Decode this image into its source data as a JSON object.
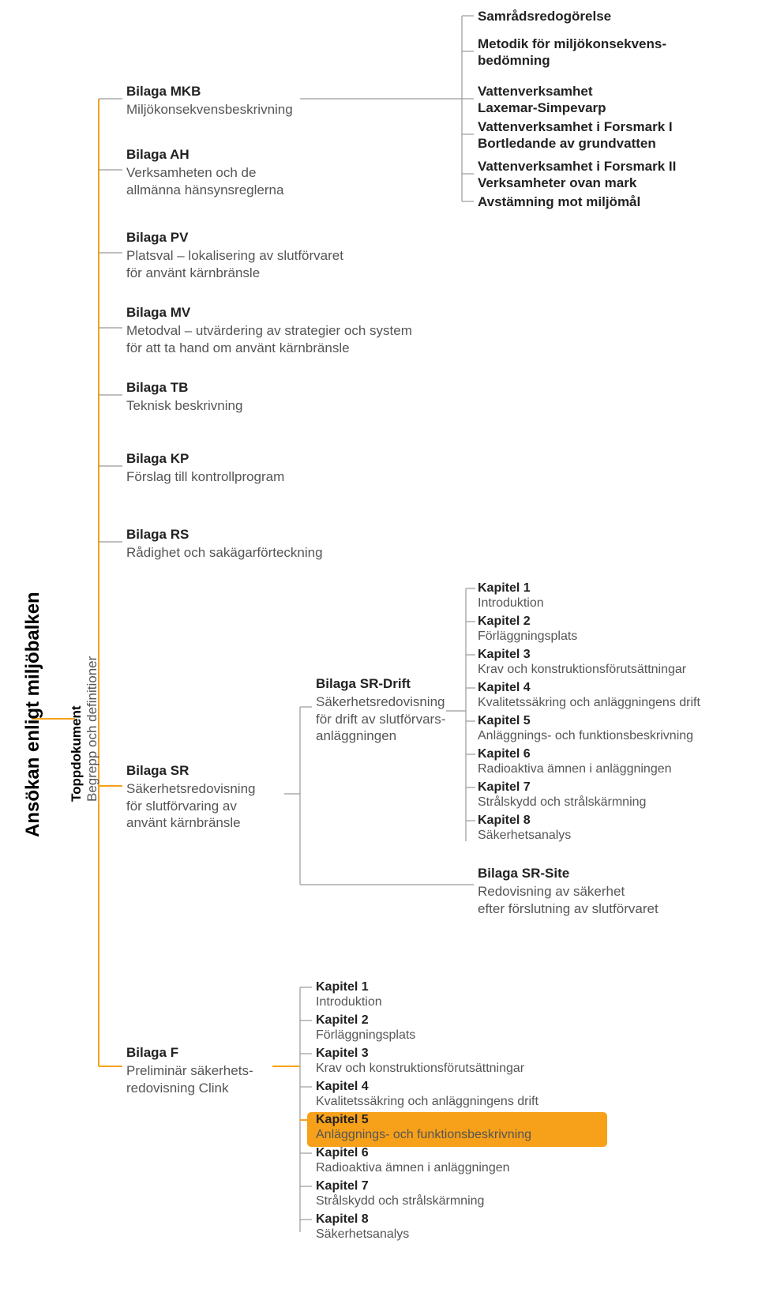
{
  "rootLabel": "Ansökan enligt miljöbalken",
  "docLabelTitle": "Toppdokument",
  "docLabelSub": "Begrepp och definitioner",
  "colors": {
    "accent": "#f7a11a",
    "line": "#999999",
    "text": "#222222",
    "subtext": "#555555",
    "background": "#ffffff"
  },
  "rightColumn": [
    {
      "title": "Samrådsredogörelse",
      "sub": ""
    },
    {
      "title": "Metodik för miljökonsekvens-\nbedömning",
      "sub": ""
    },
    {
      "title": "Vattenverksamhet\nLaxemar-Simpevarp",
      "sub": ""
    },
    {
      "title": "Vattenverksamhet i Forsmark I\nBortledande av grundvatten",
      "sub": ""
    },
    {
      "title": "Vattenverksamhet i Forsmark II\nVerksamheter ovan mark",
      "sub": ""
    },
    {
      "title": "Avstämning mot miljömål",
      "sub": ""
    }
  ],
  "mainNodes": {
    "MKB": {
      "title": "Bilaga MKB",
      "sub": "Miljökonsekvensbeskrivning"
    },
    "AH": {
      "title": "Bilaga AH",
      "sub": "Verksamheten och de\nallmänna hänsynsreglerna"
    },
    "PV": {
      "title": "Bilaga PV",
      "sub": "Platsval – lokalisering av slutförvaret\nför använt kärnbränsle"
    },
    "MV": {
      "title": "Bilaga MV",
      "sub": "Metodval – utvärdering av strategier och system\nför att ta hand om använt kärnbränsle"
    },
    "TB": {
      "title": "Bilaga TB",
      "sub": "Teknisk beskrivning"
    },
    "KP": {
      "title": "Bilaga KP",
      "sub": "Förslag till kontrollprogram"
    },
    "RS": {
      "title": "Bilaga RS",
      "sub": "Rådighet och sakägarförteckning"
    },
    "SR": {
      "title": "Bilaga SR",
      "sub": "Säkerhetsredovisning\nför slutförvaring av\nanvänt kärnbränsle"
    },
    "SRDrift": {
      "title": "Bilaga SR-Drift",
      "sub": "Säkerhetsredovisning\nför drift av slutförvars-\nanläggningen"
    },
    "SRSite": {
      "title": "Bilaga SR-Site",
      "sub": "Redovisning av säkerhet\nefter förslutning av slutförvaret"
    },
    "F": {
      "title": "Bilaga F",
      "sub": "Preliminär säkerhets-\nredovisning Clink"
    }
  },
  "chaptersA": [
    {
      "t": "Kapitel 1",
      "d": "Introduktion"
    },
    {
      "t": "Kapitel 2",
      "d": "Förläggningsplats"
    },
    {
      "t": "Kapitel 3",
      "d": "Krav och konstruktionsförutsättningar"
    },
    {
      "t": "Kapitel 4",
      "d": "Kvalitetssäkring och anläggningens drift"
    },
    {
      "t": "Kapitel 5",
      "d": "Anläggnings- och funktionsbeskrivning"
    },
    {
      "t": "Kapitel 6",
      "d": "Radioaktiva ämnen i anläggningen"
    },
    {
      "t": "Kapitel 7",
      "d": "Strålskydd och strålskärmning"
    },
    {
      "t": "Kapitel 8",
      "d": "Säkerhetsanalys"
    }
  ],
  "chaptersB": [
    {
      "t": "Kapitel 1",
      "d": "Introduktion"
    },
    {
      "t": "Kapitel 2",
      "d": "Förläggningsplats"
    },
    {
      "t": "Kapitel 3",
      "d": "Krav och konstruktionsförutsättningar"
    },
    {
      "t": "Kapitel 4",
      "d": "Kvalitetssäkring och anläggningens drift"
    },
    {
      "t": "Kapitel 5",
      "d": "Anläggnings- och funktionsbeskrivning"
    },
    {
      "t": "Kapitel 6",
      "d": "Radioaktiva ämnen i anläggningen"
    },
    {
      "t": "Kapitel 7",
      "d": "Strålskydd och strålskärmning"
    },
    {
      "t": "Kapitel 8",
      "d": "Säkerhetsanalys"
    }
  ],
  "highlight": {
    "chapterIndex": 4
  }
}
